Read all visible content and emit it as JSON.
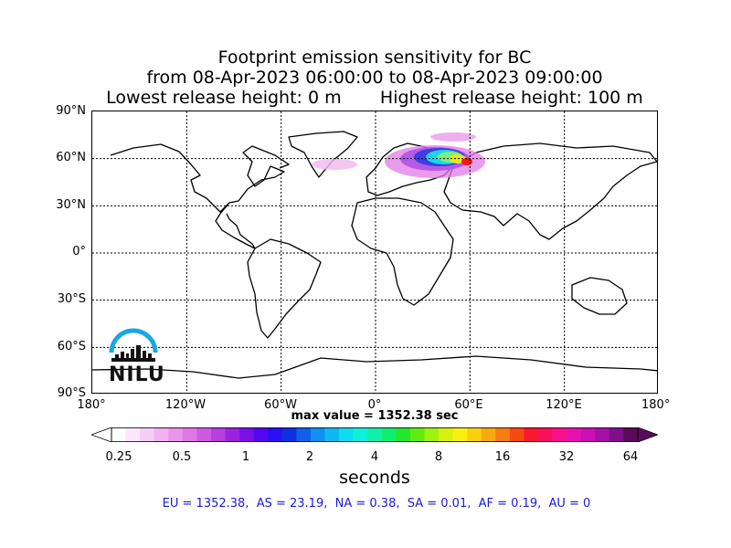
{
  "title": {
    "line1": "Footprint emission sensitivity for BC",
    "line2": "from 08-Apr-2023 06:00:00 to 08-Apr-2023 09:00:00",
    "line3_left": "Lowest release height: 0 m",
    "line3_right": "Highest release height: 100 m"
  },
  "map": {
    "lat_labels": [
      "90°N",
      "60°N",
      "30°N",
      "0°",
      "30°S",
      "60°S",
      "90°S"
    ],
    "lon_labels": [
      "180°",
      "120°W",
      "60°W",
      "0°",
      "60°E",
      "120°E",
      "180°"
    ],
    "grid": "dotted",
    "projection": "equirectangular"
  },
  "max_value": "max value = 1352.38 sec",
  "colorbar": {
    "ticks": [
      "0.25",
      "0.5",
      "1",
      "2",
      "4",
      "8",
      "16",
      "32",
      "64"
    ],
    "label": "seconds"
  },
  "summary": "EU = 1352.38,  AS = 23.19,  NA = 0.38,  SA = 0.01,  AF = 0.19,  AU = 0",
  "logo": {
    "text": "NILU",
    "color": "#1aa7e0"
  }
}
